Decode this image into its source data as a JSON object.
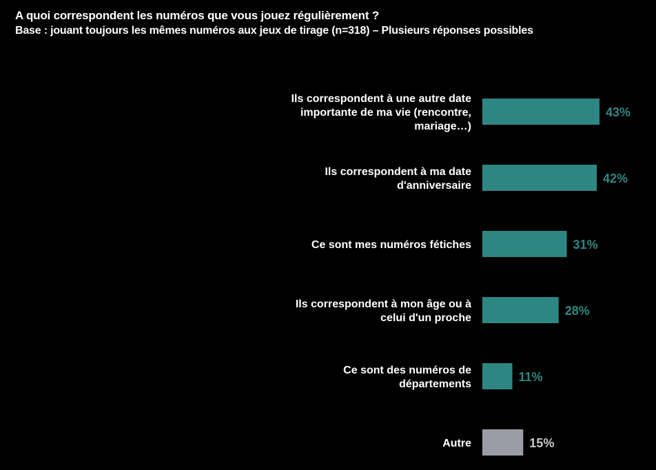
{
  "header": {
    "title": "A quoi correspondent les numéros que vous jouez régulièrement ?",
    "subtitle": "Base : jouant toujours les mêmes numéros aux jeux de tirage (n=318) – Plusieurs réponses possibles"
  },
  "colors": {
    "background": "#000000",
    "main_bar": "#2e8683",
    "main_value": "#2e8683",
    "other_bar": "#9c9ca6",
    "other_value": "#c8c8cc"
  },
  "chart_data": {
    "type": "bar",
    "orientation": "horizontal",
    "title": "A quoi correspondent les numéros que vous jouez régulièrement ?",
    "subtitle": "Base : jouant toujours les mêmes numéros aux jeux de tirage (n=318) – Plusieurs réponses possibles",
    "categories": [
      [
        "Ils correspondent à une autre date",
        "importante de ma vie (rencontre,",
        "mariage…)"
      ],
      [
        "Ils correspondent à ma date",
        "d'anniversaire"
      ],
      [
        "Ce sont mes numéros fétiches"
      ],
      [
        "Ils correspondent à mon âge ou à",
        "celui d'un proche"
      ],
      [
        "Ce sont des numéros de",
        "départements"
      ],
      [
        "Autre"
      ]
    ],
    "values": [
      43,
      42,
      31,
      28,
      11,
      15
    ],
    "value_labels": [
      "43%",
      "42%",
      "31%",
      "28%",
      "11%",
      "15%"
    ],
    "highlight": [
      "main",
      "main",
      "main",
      "main",
      "main",
      "other"
    ],
    "unit": "%",
    "xlabel": "",
    "ylabel": "",
    "xlim": [
      0,
      100
    ],
    "grid": false,
    "legend": "none"
  }
}
